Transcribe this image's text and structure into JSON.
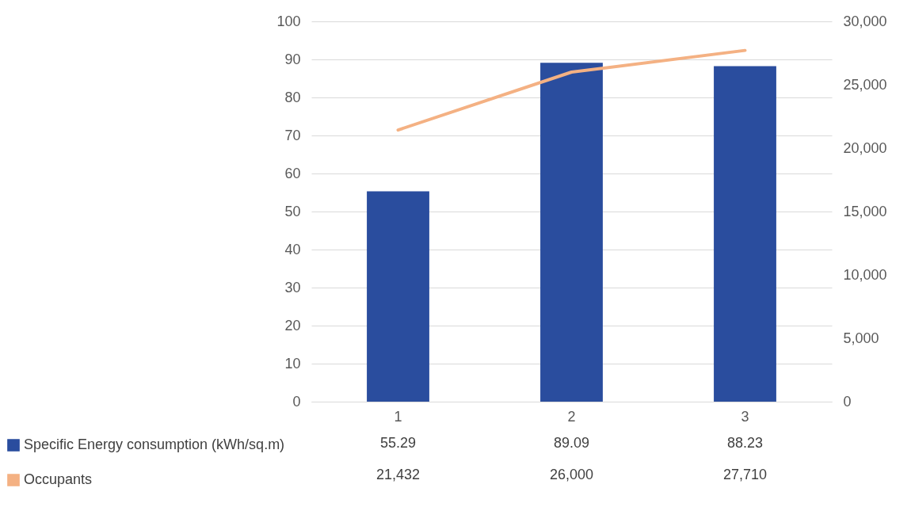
{
  "chart_data": {
    "type": "bar",
    "categories": [
      "1",
      "2",
      "3"
    ],
    "series": [
      {
        "name": "Specific Energy consumption (kWh/sq.m)",
        "color": "#2a4d9e",
        "values": [
          55.29,
          89.09,
          88.23
        ],
        "value_labels": [
          "55.29",
          "89.09",
          "88.23"
        ]
      },
      {
        "name": "Occupants",
        "type": "line",
        "axis": "y2",
        "color": "#f4b183",
        "values": [
          21432,
          26000,
          27710
        ],
        "value_labels": [
          "21,432",
          "26,000",
          "27,710"
        ]
      }
    ],
    "ylim": [
      0,
      100
    ],
    "yticks": [
      0,
      10,
      20,
      30,
      40,
      50,
      60,
      70,
      80,
      90,
      100
    ],
    "y2lim": [
      0,
      30000
    ],
    "y2ticks": [
      0,
      {
        "value": 5000,
        "label": "5,000"
      },
      {
        "value": 10000,
        "label": "10,000"
      },
      {
        "value": 15000,
        "label": "15,000"
      },
      {
        "value": 20000,
        "label": "20,000"
      },
      {
        "value": 25000,
        "label": "25,000"
      },
      {
        "value": 30000,
        "label": "30,000"
      }
    ],
    "grid": "y",
    "legend": "bottom"
  }
}
